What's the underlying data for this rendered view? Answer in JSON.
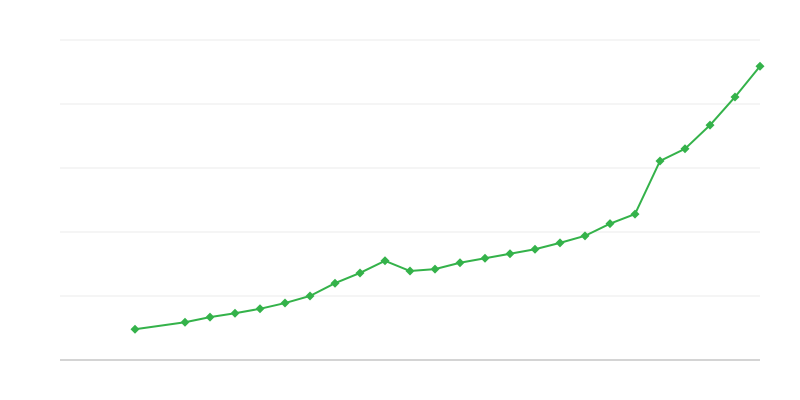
{
  "chart_data": {
    "type": "line",
    "title": "",
    "xlabel": "",
    "ylabel": "",
    "xlim": [
      0,
      28
    ],
    "ylim": [
      0,
      5
    ],
    "grid": true,
    "series": [
      {
        "color": "#34b24a",
        "marker": "diamond",
        "x": [
          3,
          5,
          6,
          7,
          8,
          9,
          10,
          11,
          12,
          13,
          14,
          15,
          16,
          17,
          18,
          19,
          20,
          21,
          22,
          23,
          24,
          25,
          26,
          27,
          28
        ],
        "y": [
          0.48,
          0.59,
          0.67,
          0.73,
          0.8,
          0.89,
          1.0,
          1.2,
          1.36,
          1.55,
          1.39,
          1.42,
          1.52,
          1.59,
          1.66,
          1.73,
          1.83,
          1.94,
          2.13,
          2.28,
          3.11,
          3.3,
          3.67,
          4.11,
          4.59
        ]
      }
    ],
    "colors": {
      "gridline": "#ebebeb",
      "axis": "#aaaaaa"
    }
  }
}
